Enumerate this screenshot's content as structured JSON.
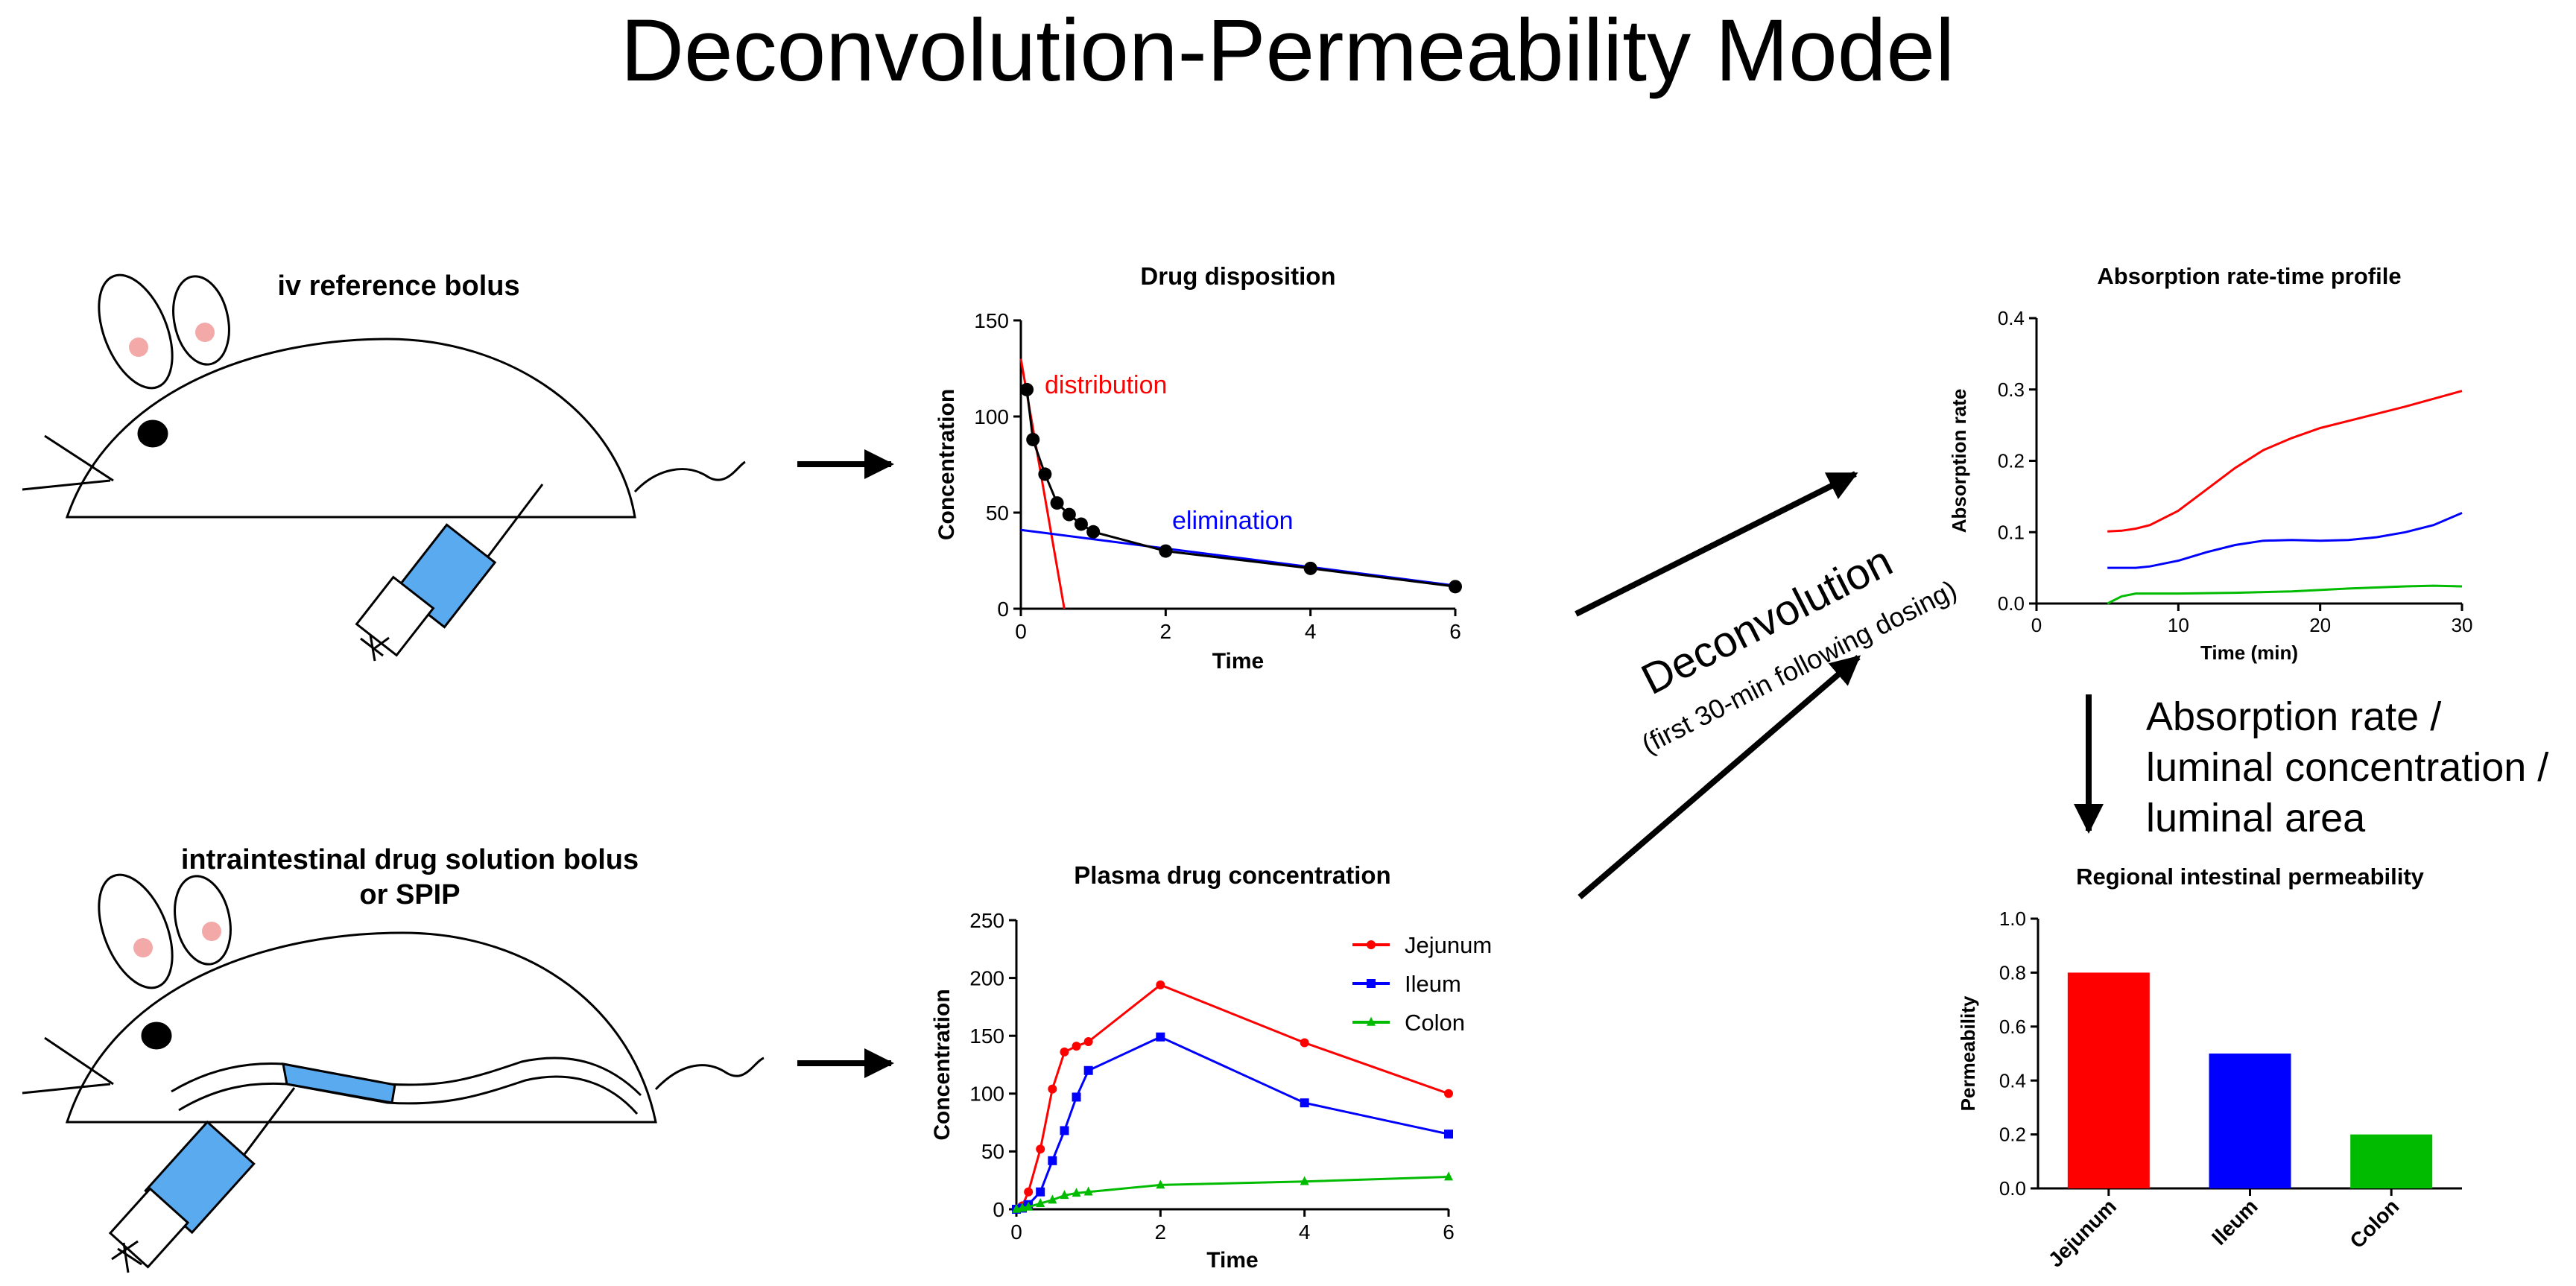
{
  "title": "Deconvolution-Permeability Model",
  "iv_label": "iv reference bolus",
  "intestinal_label_line1": "intraintestinal drug solution bolus",
  "intestinal_label_line2": "or SPIP",
  "deconvolution_label": "Deconvolution",
  "deconvolution_sub": "(first 30-min following dosing)",
  "formula_lines": [
    "Absorption rate /",
    "luminal concentration /",
    "luminal area"
  ],
  "colors": {
    "red": "#ff0000",
    "blue": "#0000ff",
    "green": "#00bb00",
    "ear_pink": "#f4a9a9",
    "syringe": "#5aaaf0"
  },
  "chart_data": [
    {
      "id": "disposition",
      "type": "scatter",
      "title": "Drug disposition",
      "xlabel": "Time",
      "ylabel": "Concentration",
      "xlim": [
        0,
        6
      ],
      "ylim": [
        0,
        150
      ],
      "xticks": [
        0,
        2,
        4,
        6
      ],
      "yticks": [
        0,
        50,
        100,
        150
      ],
      "x": [
        0.083,
        0.167,
        0.333,
        0.5,
        0.667,
        0.833,
        1,
        2,
        4,
        6
      ],
      "y": [
        114,
        88,
        70,
        55,
        49,
        44,
        40,
        30,
        21,
        11.5
      ],
      "annotations": [
        {
          "text": "distribution",
          "color": "#ff0000"
        },
        {
          "text": "elimination",
          "color": "#0000ff"
        }
      ],
      "distribution_line": {
        "x": [
          0,
          0.6
        ],
        "y": [
          130,
          0
        ]
      },
      "elimination_line": {
        "x": [
          0,
          6
        ],
        "y": [
          41,
          12
        ]
      }
    },
    {
      "id": "plasma",
      "type": "line",
      "title": "Plasma drug concentration",
      "xlabel": "Time",
      "ylabel": "Concentration",
      "xlim": [
        0,
        6
      ],
      "ylim": [
        0,
        250
      ],
      "xticks": [
        0,
        2,
        4,
        6
      ],
      "yticks": [
        0,
        50,
        100,
        150,
        200,
        250
      ],
      "legend": "top-right",
      "series": [
        {
          "name": "Jejunum",
          "color": "#ff0000",
          "marker": "circle",
          "x": [
            0,
            0.083,
            0.167,
            0.333,
            0.5,
            0.667,
            0.833,
            1,
            2,
            4,
            6
          ],
          "y": [
            0,
            3,
            15,
            52,
            104,
            136,
            141,
            145,
            194,
            144,
            100
          ]
        },
        {
          "name": "Ileum",
          "color": "#0000ff",
          "marker": "square",
          "x": [
            0,
            0.083,
            0.167,
            0.333,
            0.5,
            0.667,
            0.833,
            1,
            2,
            4,
            6
          ],
          "y": [
            0,
            1,
            4,
            15,
            42,
            68,
            97,
            120,
            149,
            92,
            65
          ]
        },
        {
          "name": "Colon",
          "color": "#00bb00",
          "marker": "triangle",
          "x": [
            0,
            0.083,
            0.167,
            0.333,
            0.5,
            0.667,
            0.833,
            1,
            2,
            4,
            6
          ],
          "y": [
            0,
            1,
            2,
            5,
            8,
            12,
            14,
            15,
            21,
            24,
            28
          ]
        }
      ]
    },
    {
      "id": "absorption",
      "type": "line",
      "title": "Absorption rate-time profile",
      "xlabel": "Time (min)",
      "ylabel": "Absorption rate",
      "xlim": [
        0,
        30
      ],
      "ylim": [
        0,
        0.4
      ],
      "xticks": [
        0,
        10,
        20,
        30
      ],
      "yticks": [
        0.0,
        0.1,
        0.2,
        0.3,
        0.4
      ],
      "series": [
        {
          "name": "Jejunum",
          "color": "#ff0000",
          "x": [
            5,
            6,
            7,
            8,
            10,
            12,
            14,
            16,
            18,
            20,
            22,
            24,
            26,
            28,
            30
          ],
          "y": [
            0.101,
            0.102,
            0.105,
            0.11,
            0.13,
            0.16,
            0.19,
            0.215,
            0.232,
            0.246,
            0.256,
            0.266,
            0.276,
            0.287,
            0.298
          ]
        },
        {
          "name": "Ileum",
          "color": "#0000ff",
          "x": [
            5,
            7,
            8,
            10,
            12,
            14,
            16,
            18,
            20,
            22,
            24,
            26,
            28,
            30
          ],
          "y": [
            0.05,
            0.05,
            0.052,
            0.06,
            0.072,
            0.082,
            0.088,
            0.089,
            0.088,
            0.089,
            0.093,
            0.1,
            0.11,
            0.127
          ]
        },
        {
          "name": "Colon",
          "color": "#00bb00",
          "x": [
            5,
            6,
            7,
            10,
            14,
            18,
            22,
            26,
            28,
            30
          ],
          "y": [
            0.0,
            0.01,
            0.014,
            0.014,
            0.015,
            0.017,
            0.021,
            0.024,
            0.025,
            0.024
          ]
        }
      ]
    },
    {
      "id": "permeability",
      "type": "bar",
      "title": "Regional intestinal permeability",
      "xlabel": "",
      "ylabel": "Permeability",
      "ylim": [
        0,
        1.0
      ],
      "yticks": [
        0.0,
        0.2,
        0.4,
        0.6,
        0.8,
        1.0
      ],
      "categories": [
        "Jejunum",
        "Ileum",
        "Colon"
      ],
      "values": [
        0.8,
        0.5,
        0.2
      ],
      "colors": [
        "#ff0000",
        "#0000ff",
        "#00bb00"
      ]
    }
  ]
}
